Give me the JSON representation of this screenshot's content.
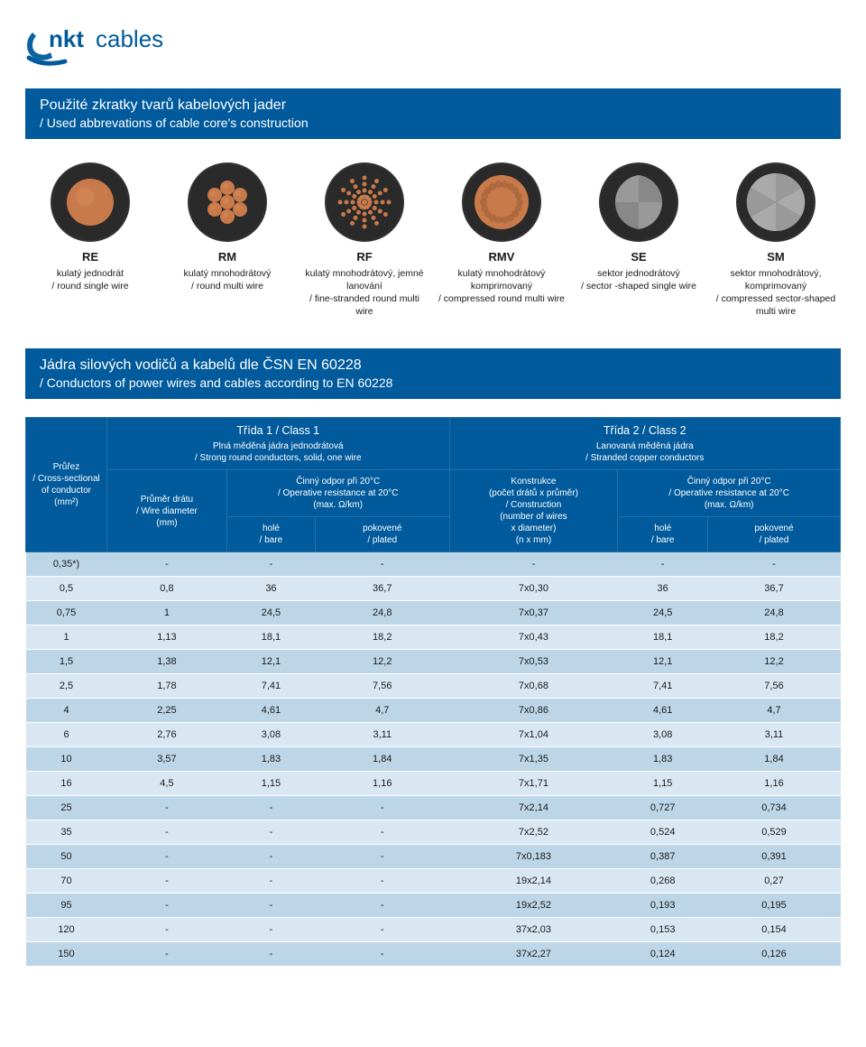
{
  "logo_text": "nktcables",
  "logo_color": "#005a9c",
  "section1": {
    "title": "Použité zkratky tvarů kabelových jader",
    "subtitle": "/ Used abbrevations of cable core's construction"
  },
  "cables": [
    {
      "code": "RE",
      "cz": "kulatý jednodrát",
      "en": "/ round single wire",
      "bg": "#3a3a3a",
      "inner": "single-copper"
    },
    {
      "code": "RM",
      "cz": "kulatý mnohodrátový",
      "en": "/ round multi wire",
      "bg": "#333",
      "inner": "multi-copper"
    },
    {
      "code": "RF",
      "cz": "kulatý mnohodrátový, jemné lanování",
      "en": "/ fine-stranded round multi wire",
      "bg": "#333",
      "inner": "fine-copper"
    },
    {
      "code": "RMV",
      "cz": "kulatý mnohodrátový komprimovaný",
      "en": "/ compressed round multi wire",
      "bg": "#333",
      "inner": "compressed"
    },
    {
      "code": "SE",
      "cz": "sektor jednodrátový",
      "en": "/ sector -shaped single wire",
      "bg": "#333",
      "inner": "sector"
    },
    {
      "code": "SM",
      "cz": "sektor mnohodrátový, komprimovaný",
      "en": "/ compressed sector-shaped multi wire",
      "bg": "#333",
      "inner": "sector-multi"
    }
  ],
  "section2": {
    "title": "Jádra silových vodičů a kabelů dle ČSN EN 60228",
    "subtitle": "/ Conductors of power wires and cables according to EN 60228"
  },
  "table": {
    "col_first": "Průřez\n/ Cross-sectional\nof conductor\n(mm²)",
    "class1_title": "Třída 1 / Class 1",
    "class1_sub": "Plná měděná jádra jednodrátová\n/ Strong round conductors, solid, one wire",
    "class2_title": "Třída 2 / Class 2",
    "class2_sub": "Lanovaná měděná jádra\n/ Stranded copper conductors",
    "c1a": "Průměr drátu\n/ Wire diameter\n(mm)",
    "c1b": "Činný odpor při 20°C\n/ Operative resistance at 20°C\n(max. Ω/km)",
    "c2a": "Konstrukce\n(počet drátů x průměr)\n/ Construction\n(number of wires\nx diameter)\n(n x mm)",
    "c2b": "Činný odpor při 20°C\n/ Operative resistance at 20°C\n(max. Ω/km)",
    "bare": "holé\n/ bare",
    "plated": "pokovené\n/ plated",
    "rows": [
      [
        "0,35*)",
        "-",
        "-",
        "-",
        "-",
        "-",
        "-"
      ],
      [
        "0,5",
        "0,8",
        "36",
        "36,7",
        "7x0,30",
        "36",
        "36,7"
      ],
      [
        "0,75",
        "1",
        "24,5",
        "24,8",
        "7x0,37",
        "24,5",
        "24,8"
      ],
      [
        "1",
        "1,13",
        "18,1",
        "18,2",
        "7x0,43",
        "18,1",
        "18,2"
      ],
      [
        "1,5",
        "1,38",
        "12,1",
        "12,2",
        "7x0,53",
        "12,1",
        "12,2"
      ],
      [
        "2,5",
        "1,78",
        "7,41",
        "7,56",
        "7x0,68",
        "7,41",
        "7,56"
      ],
      [
        "4",
        "2,25",
        "4,61",
        "4,7",
        "7x0,86",
        "4,61",
        "4,7"
      ],
      [
        "6",
        "2,76",
        "3,08",
        "3,11",
        "7x1,04",
        "3,08",
        "3,11"
      ],
      [
        "10",
        "3,57",
        "1,83",
        "1,84",
        "7x1,35",
        "1,83",
        "1,84"
      ],
      [
        "16",
        "4,5",
        "1,15",
        "1,16",
        "7x1,71",
        "1,15",
        "1,16"
      ],
      [
        "25",
        "-",
        "-",
        "-",
        "7x2,14",
        "0,727",
        "0,734"
      ],
      [
        "35",
        "-",
        "-",
        "-",
        "7x2,52",
        "0,524",
        "0,529"
      ],
      [
        "50",
        "-",
        "-",
        "-",
        "7x0,183",
        "0,387",
        "0,391"
      ],
      [
        "70",
        "-",
        "-",
        "-",
        "19x2,14",
        "0,268",
        "0,27"
      ],
      [
        "95",
        "-",
        "-",
        "-",
        "19x2,52",
        "0,193",
        "0,195"
      ],
      [
        "120",
        "-",
        "-",
        "-",
        "37x2,03",
        "0,153",
        "0,154"
      ],
      [
        "150",
        "-",
        "-",
        "-",
        "37x2,27",
        "0,124",
        "0,126"
      ]
    ]
  },
  "colors": {
    "primary": "#005a9c",
    "row_odd": "#bcd6e8",
    "row_even": "#d9e7f2",
    "copper": "#c97a4a"
  }
}
